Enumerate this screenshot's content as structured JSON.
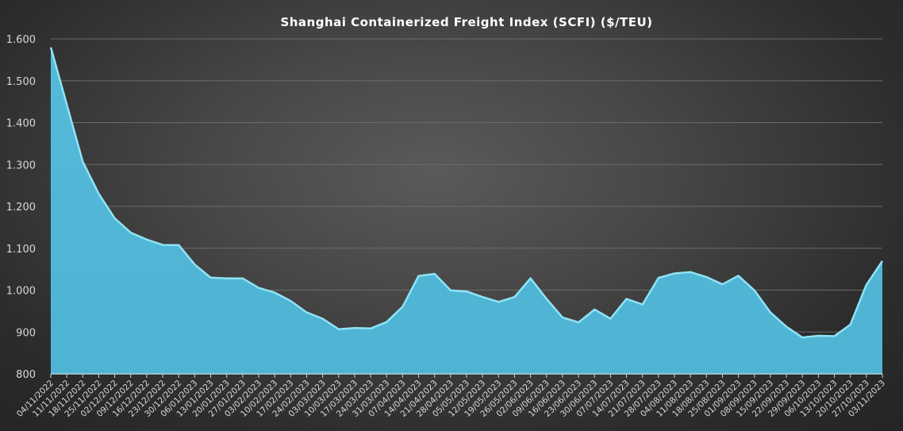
{
  "chart_data": {
    "type": "area",
    "title": "Shanghai  Containerized Freight Index  (SCFI) ($/TEU)",
    "xlabel": "",
    "ylabel": "",
    "ylim": [
      800,
      1600
    ],
    "yticks": [
      800,
      900,
      1000,
      1100,
      1200,
      1300,
      1400,
      1500,
      1600
    ],
    "ytick_labels": [
      "800",
      "900",
      "1.000",
      "1.100",
      "1.200",
      "1.300",
      "1.400",
      "1.500",
      "1.600"
    ],
    "grid": true,
    "legend": "none",
    "colors": {
      "fill": "#52b6d6",
      "edge": "#8fe3f5",
      "grid": "#6a6a6a",
      "text": "#d8d8d8"
    },
    "categories": [
      "04/11/2022",
      "11/11/2022",
      "18/11/2022",
      "25/11/2022",
      "02/12/2022",
      "09/12/2022",
      "16/12/2022",
      "23/12/2022",
      "30/12/2022",
      "06/01/2023",
      "13/01/2023",
      "20/01/2023",
      "27/01/2023",
      "03/02/2023",
      "10/02/2023",
      "17/02/2023",
      "24/02/2023",
      "03/03/2023",
      "10/03/2023",
      "17/03/2023",
      "24/03/2023",
      "31/03/2023",
      "07/04/2023",
      "14/04/2023",
      "21/04/2023",
      "28/04/2023",
      "05/05/2023",
      "12/05/2023",
      "19/05/2023",
      "26/05/2023",
      "02/06/2023",
      "09/06/2023",
      "16/06/2023",
      "23/06/2023",
      "30/06/2023",
      "07/07/2023",
      "14/07/2023",
      "21/07/2023",
      "28/07/2023",
      "04/08/2023",
      "11/08/2023",
      "18/08/2023",
      "25/08/2023",
      "01/09/2023",
      "08/09/2023",
      "15/09/2023",
      "22/09/2023",
      "29/09/2023",
      "06/10/2023",
      "13/10/2023",
      "20/10/2023",
      "27/10/2023",
      "03/11/2023"
    ],
    "series": [
      {
        "name": "SCFI",
        "values": [
          1579.9,
          1443.3,
          1306.8,
          1229.9,
          1171.4,
          1137.3,
          1120.8,
          1107.8,
          1107.6,
          1061.1,
          1029.8,
          1028.0,
          1028.0,
          1005.4,
          994.1,
          974.2,
          946.7,
          931.7,
          906.6,
          909.6,
          908.4,
          923.8,
          960.4,
          1033.7,
          1038.9,
          999.7,
          996.8,
          983.5,
          971.9,
          983.6,
          1028.3,
          979.1,
          934.7,
          923.1,
          953.6,
          931.7,
          979.1,
          965.7,
          1029.2,
          1039.8,
          1043.0,
          1031.2,
          1013.8,
          1034.4,
          999.3,
          946.7,
          912.4,
          886.9,
          891.0,
          890.0,
          917.7,
          1012.6,
          1069.5
        ]
      }
    ]
  }
}
